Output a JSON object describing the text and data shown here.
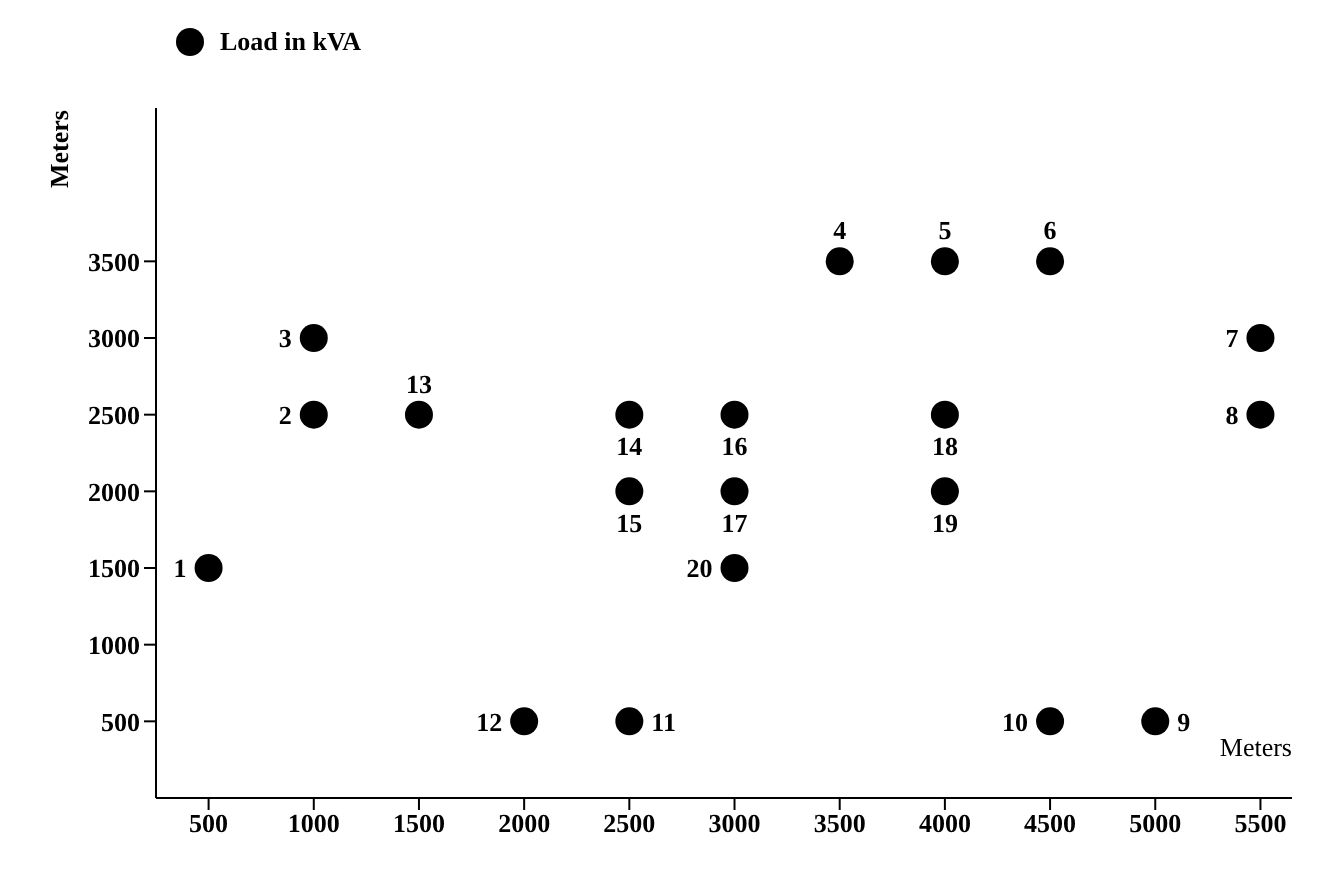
{
  "chart_data": {
    "type": "scatter",
    "xlabel": "Meters",
    "ylabel": "Meters",
    "xlim": [
      250,
      5650
    ],
    "ylim": [
      0,
      4500
    ],
    "xticks": [
      500,
      1000,
      1500,
      2000,
      2500,
      3000,
      3500,
      4000,
      4500,
      5000,
      5500
    ],
    "yticks": [
      500,
      1000,
      1500,
      2000,
      2500,
      3000,
      3500
    ],
    "grid": false,
    "legend": "top left",
    "marker": "circle",
    "series": [
      {
        "name": "Load in kVA",
        "color": "#000000",
        "x": [
          500,
          1000,
          1000,
          3500,
          4000,
          4500,
          5500,
          5500,
          5000,
          4500,
          2500,
          2000,
          1500,
          2500,
          2500,
          3000,
          3000,
          4000,
          4000,
          3000
        ],
        "values": [
          1500,
          2500,
          3000,
          3500,
          3500,
          3500,
          3000,
          2500,
          500,
          500,
          500,
          500,
          2500,
          2500,
          2000,
          2500,
          2000,
          2500,
          2000,
          1500
        ]
      }
    ],
    "annotations": [
      {
        "text": "1",
        "x": 500,
        "y": 1500
      },
      {
        "text": "2",
        "x": 1000,
        "y": 2500
      },
      {
        "text": "3",
        "x": 1000,
        "y": 3000
      },
      {
        "text": "4",
        "x": 3500,
        "y": 3500
      },
      {
        "text": "5",
        "x": 4000,
        "y": 3500
      },
      {
        "text": "6",
        "x": 4500,
        "y": 3500
      },
      {
        "text": "7",
        "x": 5500,
        "y": 3000
      },
      {
        "text": "8",
        "x": 5500,
        "y": 2500
      },
      {
        "text": "9",
        "x": 5000,
        "y": 500
      },
      {
        "text": "10",
        "x": 4500,
        "y": 500
      },
      {
        "text": "11",
        "x": 2500,
        "y": 500
      },
      {
        "text": "12",
        "x": 2000,
        "y": 500
      },
      {
        "text": "13",
        "x": 1500,
        "y": 2500
      },
      {
        "text": "14",
        "x": 2500,
        "y": 2500
      },
      {
        "text": "15",
        "x": 2500,
        "y": 2000
      },
      {
        "text": "16",
        "x": 3000,
        "y": 2500
      },
      {
        "text": "17",
        "x": 3000,
        "y": 2000
      },
      {
        "text": "18",
        "x": 4000,
        "y": 2500
      },
      {
        "text": "19",
        "x": 4000,
        "y": 2000
      },
      {
        "text": "20",
        "x": 3000,
        "y": 1500
      }
    ]
  }
}
